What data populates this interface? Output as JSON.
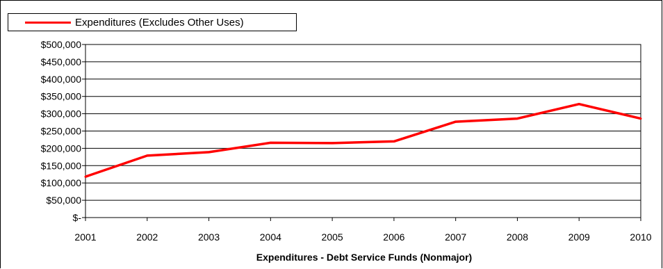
{
  "chart_data": {
    "type": "line",
    "title": "Expenditures - Debt Service Funds (Nonmajor)",
    "xlabel": "",
    "ylabel": "",
    "x": [
      "2001",
      "2002",
      "2003",
      "2004",
      "2005",
      "2006",
      "2007",
      "2008",
      "2009",
      "2010"
    ],
    "series": [
      {
        "name": "Expenditures (Excludes Other Uses)",
        "color": "#ff0000",
        "values": [
          118000,
          179000,
          189000,
          216000,
          215000,
          220000,
          277000,
          286000,
          328000,
          286000
        ]
      }
    ],
    "ylim": [
      0,
      500000
    ],
    "y_ticks": [
      0,
      50000,
      100000,
      150000,
      200000,
      250000,
      300000,
      350000,
      400000,
      450000,
      500000
    ],
    "y_tick_labels": [
      "$-",
      "$50,000",
      "$100,000",
      "$150,000",
      "$200,000",
      "$250,000",
      "$300,000",
      "$350,000",
      "$400,000",
      "$450,000",
      "$500,000"
    ],
    "grid": true,
    "legend_position": "top-left"
  }
}
